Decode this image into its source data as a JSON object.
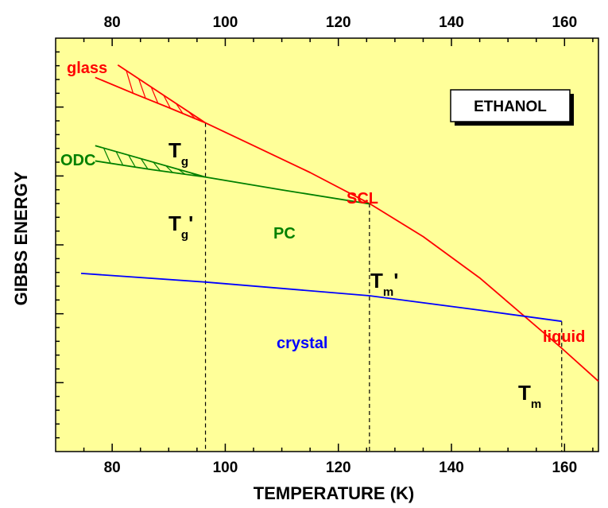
{
  "chart_data": {
    "type": "line",
    "xlabel": "TEMPERATURE (K)",
    "ylabel": "GIBBS ENERGY",
    "xlim": [
      70,
      166
    ],
    "ylim": [
      0,
      100
    ],
    "x_ticks": [
      "80",
      "100",
      "120",
      "140",
      "160"
    ],
    "x_tick_values": [
      80,
      100,
      120,
      140,
      160
    ],
    "y_tick_labels": "none",
    "grid": false,
    "background_color": "#FFFF99",
    "box_label": "ETHANOL",
    "series": [
      {
        "name": "glass",
        "color": "#FF0000",
        "x": [
          77,
          84,
          90,
          96.5
        ],
        "y": [
          90.5,
          86.5,
          83.2,
          79.5
        ]
      },
      {
        "name": "SCL",
        "color": "#FF0000",
        "x": [
          96.5,
          105,
          115,
          125.5,
          135,
          145,
          159.5,
          166
        ],
        "y": [
          79.5,
          74.0,
          67.5,
          60.0,
          52.0,
          42.0,
          25.0,
          17.0
        ]
      },
      {
        "name": "ODC",
        "color": "#008000",
        "x": [
          77,
          87,
          96.5
        ],
        "y": [
          70.3,
          68.2,
          66.4
        ]
      },
      {
        "name": "PC",
        "color": "#008000",
        "x": [
          96.5,
          110,
          125.5
        ],
        "y": [
          66.4,
          63.3,
          59.9
        ]
      },
      {
        "name": "crystal",
        "color": "#0000FF",
        "x": [
          74.5,
          96.5,
          125.5,
          145,
          159.5
        ],
        "y": [
          43.1,
          41.0,
          37.7,
          34.2,
          31.5
        ]
      }
    ],
    "extrapolations": [
      {
        "name": "glass-extrapolation",
        "color": "#FF0000",
        "x": [
          81,
          96.5
        ],
        "y": [
          93.5,
          79.5
        ]
      },
      {
        "name": "ODC-extrapolation",
        "color": "#008000",
        "x": [
          77,
          96.5
        ],
        "y": [
          74.0,
          66.4
        ]
      }
    ],
    "transition_markers": [
      {
        "name": "Tg",
        "x": 96.5
      },
      {
        "name": "Tg-prime",
        "x": 96.5
      },
      {
        "name": "Tm-prime",
        "x": 125.5
      },
      {
        "name": "Tm",
        "x": 159.5
      }
    ],
    "annotations": {
      "glass": "glass",
      "odc": "ODC",
      "scl": "SCL",
      "pc": "PC",
      "crystal": "crystal",
      "liquid": "liquid",
      "tg": {
        "main": "T",
        "sub": "g",
        "prime": ""
      },
      "tg_prime": {
        "main": "T",
        "sub": "g",
        "prime": "'"
      },
      "tm_prime": {
        "main": "T",
        "sub": "m",
        "prime": "'"
      },
      "tm": {
        "main": "T",
        "sub": "m",
        "prime": ""
      }
    }
  }
}
